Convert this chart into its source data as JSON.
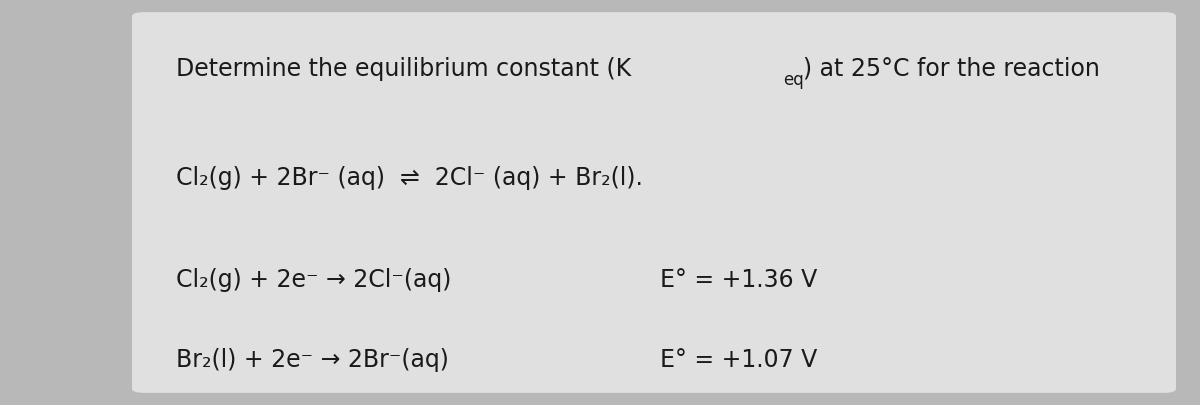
{
  "background_color": "#b8b8b8",
  "panel_color": "#e0e0e0",
  "text_color": "#1a1a1a",
  "title_prefix": "Determine the equilibrium constant (K",
  "title_sub": "eq",
  "title_suffix": ") at 25°C for the reaction",
  "reaction_line": "Cl₂(g) + 2Br⁻ (aq)  ⇌  2Cl⁻ (aq) + Br₂(l).",
  "half_reaction_1": "Cl₂(g) + 2e⁻ → 2Cl⁻(aq)",
  "half_reaction_2": "Br₂(l) + 2e⁻ → 2Br⁻(aq)",
  "eo_1": "E° = +1.36 V",
  "eo_2": "E° = +1.07 V",
  "title_fontsize": 17,
  "body_fontsize": 17,
  "sub_fontsize": 12
}
